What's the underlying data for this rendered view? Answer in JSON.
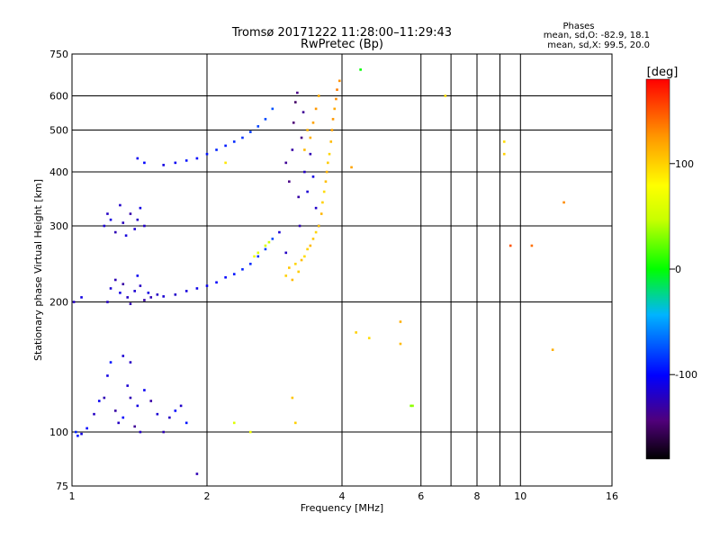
{
  "chart_data": {
    "type": "scatter",
    "title": "Tromsø 20171222 11:28:00–11:29:43",
    "subtitle": "RwPretec (Bp)",
    "xlabel": "Frequency [MHz]",
    "ylabel": "Stationary phase Virtual Height [km]",
    "x_scale": "log",
    "y_scale": "log",
    "xlim": [
      1,
      16
    ],
    "ylim": [
      75,
      750
    ],
    "x_ticks": [
      1,
      2,
      4,
      6,
      8,
      10,
      16
    ],
    "y_ticks": [
      75,
      100,
      200,
      300,
      400,
      500,
      600,
      750
    ],
    "grid": true,
    "legend": {
      "heading": "Phases",
      "line_o": "mean, sd,O: -82.9, 18.1",
      "line_x": "mean, sd,X:  99.5, 20.0"
    },
    "colorbar": {
      "label": "[deg]",
      "range": [
        -180,
        180
      ],
      "ticks": [
        100,
        0,
        -100
      ]
    },
    "series": [
      {
        "name": "O",
        "color_by": "phase",
        "points": [
          [
            1.01,
            200,
            -120
          ],
          [
            1.02,
            100,
            -90
          ],
          [
            1.03,
            98,
            -95
          ],
          [
            1.05,
            99,
            -110
          ],
          [
            1.08,
            102,
            -100
          ],
          [
            1.12,
            110,
            -120
          ],
          [
            1.15,
            118,
            -105
          ],
          [
            1.18,
            120,
            -125
          ],
          [
            1.2,
            135,
            -110
          ],
          [
            1.22,
            145,
            -95
          ],
          [
            1.25,
            112,
            -130
          ],
          [
            1.27,
            105,
            -120
          ],
          [
            1.3,
            108,
            -100
          ],
          [
            1.33,
            128,
            -115
          ],
          [
            1.35,
            120,
            -125
          ],
          [
            1.38,
            103,
            -135
          ],
          [
            1.4,
            115,
            -110
          ],
          [
            1.42,
            100,
            -120
          ],
          [
            1.45,
            125,
            -105
          ],
          [
            1.5,
            118,
            -130
          ],
          [
            1.55,
            110,
            -115
          ],
          [
            1.6,
            100,
            -125
          ],
          [
            1.65,
            108,
            -120
          ],
          [
            1.7,
            112,
            -100
          ],
          [
            1.75,
            115,
            -118
          ],
          [
            1.8,
            105,
            -95
          ],
          [
            1.2,
            200,
            -120
          ],
          [
            1.22,
            215,
            -115
          ],
          [
            1.25,
            225,
            -125
          ],
          [
            1.28,
            210,
            -110
          ],
          [
            1.3,
            220,
            -130
          ],
          [
            1.33,
            205,
            -120
          ],
          [
            1.35,
            198,
            -125
          ],
          [
            1.38,
            212,
            -115
          ],
          [
            1.4,
            230,
            -105
          ],
          [
            1.42,
            218,
            -120
          ],
          [
            1.45,
            202,
            -130
          ],
          [
            1.48,
            210,
            -110
          ],
          [
            1.5,
            205,
            -125
          ],
          [
            1.55,
            208,
            -120
          ],
          [
            1.6,
            206,
            -115
          ],
          [
            1.7,
            208,
            -118
          ],
          [
            1.8,
            212,
            -112
          ],
          [
            1.9,
            215,
            -108
          ],
          [
            2.0,
            218,
            -105
          ],
          [
            2.1,
            222,
            -102
          ],
          [
            2.2,
            228,
            -100
          ],
          [
            2.3,
            232,
            -95
          ],
          [
            2.4,
            238,
            -90
          ],
          [
            2.5,
            245,
            -88
          ],
          [
            2.6,
            255,
            -85
          ],
          [
            2.7,
            265,
            -80
          ],
          [
            2.8,
            280,
            -78
          ],
          [
            1.18,
            300,
            -115
          ],
          [
            1.2,
            320,
            -120
          ],
          [
            1.22,
            310,
            -110
          ],
          [
            1.25,
            290,
            -125
          ],
          [
            1.28,
            335,
            -118
          ],
          [
            1.3,
            305,
            -122
          ],
          [
            1.32,
            285,
            -112
          ],
          [
            1.35,
            320,
            -128
          ],
          [
            1.38,
            295,
            -116
          ],
          [
            1.4,
            310,
            -120
          ],
          [
            1.42,
            330,
            -110
          ],
          [
            1.45,
            300,
            -118
          ],
          [
            1.4,
            430,
            -105
          ],
          [
            1.45,
            420,
            -100
          ],
          [
            1.6,
            415,
            -110
          ],
          [
            1.7,
            420,
            -105
          ],
          [
            1.8,
            425,
            -95
          ],
          [
            1.9,
            430,
            -100
          ],
          [
            2.0,
            440,
            -95
          ],
          [
            2.1,
            450,
            -90
          ],
          [
            2.2,
            460,
            -92
          ],
          [
            2.3,
            470,
            -88
          ],
          [
            2.4,
            480,
            -85
          ],
          [
            2.5,
            495,
            -82
          ],
          [
            2.6,
            510,
            -80
          ],
          [
            2.7,
            530,
            -78
          ],
          [
            2.8,
            560,
            -75
          ],
          [
            3.0,
            420,
            -135
          ],
          [
            3.05,
            380,
            -140
          ],
          [
            3.1,
            450,
            -130
          ],
          [
            3.12,
            520,
            -145
          ],
          [
            3.15,
            580,
            -150
          ],
          [
            3.18,
            610,
            -140
          ],
          [
            3.2,
            350,
            -130
          ],
          [
            3.22,
            300,
            -125
          ],
          [
            3.25,
            480,
            -140
          ],
          [
            3.28,
            550,
            -135
          ],
          [
            3.3,
            400,
            -120
          ],
          [
            3.35,
            360,
            -115
          ],
          [
            3.4,
            440,
            -125
          ],
          [
            3.45,
            390,
            -110
          ],
          [
            3.5,
            330,
            -118
          ],
          [
            3.55,
            300,
            -105
          ],
          [
            3.0,
            260,
            -120
          ],
          [
            2.9,
            290,
            -115
          ],
          [
            1.3,
            150,
            -115
          ],
          [
            1.35,
            145,
            -120
          ],
          [
            1.9,
            80,
            -125
          ],
          [
            1.05,
            205,
            -110
          ]
        ]
      },
      {
        "name": "X",
        "color_by": "phase",
        "points": [
          [
            3.0,
            230,
            100
          ],
          [
            3.05,
            240,
            105
          ],
          [
            3.1,
            225,
            110
          ],
          [
            3.15,
            245,
            98
          ],
          [
            3.2,
            235,
            102
          ],
          [
            3.25,
            250,
            108
          ],
          [
            3.3,
            255,
            95
          ],
          [
            3.35,
            265,
            100
          ],
          [
            3.4,
            270,
            110
          ],
          [
            3.45,
            280,
            104
          ],
          [
            3.5,
            290,
            98
          ],
          [
            3.55,
            300,
            106
          ],
          [
            3.6,
            320,
            112
          ],
          [
            3.62,
            340,
            100
          ],
          [
            3.65,
            360,
            95
          ],
          [
            3.68,
            380,
            108
          ],
          [
            3.7,
            400,
            115
          ],
          [
            3.72,
            420,
            102
          ],
          [
            3.75,
            440,
            98
          ],
          [
            3.78,
            470,
            110
          ],
          [
            3.8,
            500,
            120
          ],
          [
            3.82,
            530,
            125
          ],
          [
            3.85,
            560,
            118
          ],
          [
            3.88,
            590,
            130
          ],
          [
            3.9,
            620,
            135
          ],
          [
            3.95,
            650,
            128
          ],
          [
            3.4,
            480,
            115
          ],
          [
            3.45,
            520,
            120
          ],
          [
            3.5,
            560,
            125
          ],
          [
            3.55,
            600,
            118
          ],
          [
            3.3,
            450,
            110
          ],
          [
            3.35,
            500,
            115
          ],
          [
            2.55,
            255,
            70
          ],
          [
            2.6,
            260,
            60
          ],
          [
            2.7,
            270,
            55
          ],
          [
            2.75,
            275,
            50
          ],
          [
            2.2,
            420,
            90
          ],
          [
            4.3,
            170,
            100
          ],
          [
            4.6,
            165,
            95
          ],
          [
            5.4,
            160,
            110
          ],
          [
            5.4,
            180,
            115
          ],
          [
            5.7,
            115,
            30
          ],
          [
            5.75,
            115,
            35
          ],
          [
            4.2,
            410,
            120
          ],
          [
            4.4,
            690,
            0
          ],
          [
            6.8,
            600,
            95
          ],
          [
            9.2,
            470,
            95
          ],
          [
            9.2,
            440,
            100
          ],
          [
            3.1,
            120,
            105
          ],
          [
            3.15,
            105,
            100
          ],
          [
            2.3,
            105,
            60
          ],
          [
            2.5,
            100,
            70
          ],
          [
            9.5,
            270,
            150
          ],
          [
            10.6,
            270,
            140
          ],
          [
            12.5,
            340,
            130
          ],
          [
            11.8,
            155,
            115
          ]
        ]
      }
    ]
  }
}
